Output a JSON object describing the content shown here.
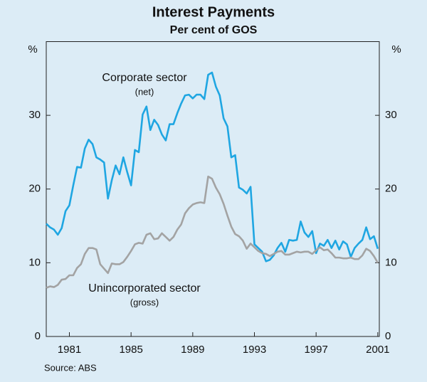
{
  "chart_data": {
    "type": "line",
    "title": "Interest Payments",
    "subtitle": "Per cent of GOS",
    "y_unit": "%",
    "y2_unit": "%",
    "source": "Source: ABS",
    "annotations": [
      "(net)",
      "(gross)"
    ],
    "x": [
      1979.5,
      1979.75,
      1980,
      1980.25,
      1980.5,
      1980.75,
      1981,
      1981.25,
      1981.5,
      1981.75,
      1982,
      1982.25,
      1982.5,
      1982.75,
      1983,
      1983.25,
      1983.5,
      1983.75,
      1984,
      1984.25,
      1984.5,
      1984.75,
      1985,
      1985.25,
      1985.5,
      1985.75,
      1986,
      1986.25,
      1986.5,
      1986.75,
      1987,
      1987.25,
      1987.5,
      1987.75,
      1988,
      1988.25,
      1988.5,
      1988.75,
      1989,
      1989.25,
      1989.5,
      1989.75,
      1990,
      1990.25,
      1990.5,
      1990.75,
      1991,
      1991.25,
      1991.5,
      1991.75,
      1992,
      1992.25,
      1992.5,
      1992.75,
      1993,
      1993.25,
      1993.5,
      1993.75,
      1994,
      1994.25,
      1994.5,
      1994.75,
      1995,
      1995.25,
      1995.5,
      1995.75,
      1996,
      1996.25,
      1996.5,
      1996.75,
      1997,
      1997.25,
      1997.5,
      1997.75,
      1998,
      1998.25,
      1998.5,
      1998.75,
      1999,
      1999.25,
      1999.5,
      1999.75,
      2000,
      2000.25,
      2000.5,
      2000.75,
      2001
    ],
    "series": [
      {
        "name": "Corporate sector",
        "color": "#1fa6e2",
        "values": [
          15.3,
          14.8,
          14.5,
          13.8,
          14.7,
          17.0,
          17.8,
          20.5,
          23.0,
          22.9,
          25.5,
          26.7,
          26.1,
          24.3,
          24.0,
          23.6,
          18.7,
          21.2,
          23.2,
          22.0,
          24.3,
          22.3,
          20.5,
          25.3,
          25.0,
          30.1,
          31.2,
          28.0,
          29.4,
          28.7,
          27.4,
          26.6,
          28.8,
          28.8,
          30.3,
          31.6,
          32.7,
          32.8,
          32.3,
          32.8,
          32.8,
          32.2,
          35.5,
          35.8,
          33.9,
          32.7,
          29.6,
          28.5,
          24.3,
          24.6,
          20.2,
          19.9,
          19.4,
          20.3,
          12.5,
          12.0,
          11.5,
          10.2,
          10.4,
          11.0,
          12.0,
          12.7,
          11.5,
          13.1,
          13.0,
          13.1,
          15.6,
          14.1,
          13.5,
          14.3,
          11.3,
          12.6,
          12.3,
          13.1,
          12.0,
          13.0,
          11.8,
          12.9,
          12.5,
          10.8,
          12.0,
          12.6,
          13.1,
          14.8,
          13.2,
          13.6,
          11.9
        ]
      },
      {
        "name": "Unincorporated sector",
        "color": "#a3a3a3",
        "values": [
          6.6,
          6.8,
          6.7,
          7.0,
          7.7,
          7.8,
          8.3,
          8.3,
          9.3,
          9.8,
          11.2,
          12.0,
          12.0,
          11.8,
          9.8,
          9.2,
          8.6,
          9.9,
          9.8,
          9.8,
          10.1,
          10.8,
          11.6,
          12.5,
          12.7,
          12.6,
          13.8,
          14.0,
          13.2,
          13.3,
          14.0,
          13.5,
          13.0,
          13.5,
          14.5,
          15.2,
          16.7,
          17.4,
          17.9,
          18.1,
          18.2,
          18.1,
          21.7,
          21.4,
          20.2,
          19.3,
          18.0,
          16.4,
          14.9,
          13.9,
          13.6,
          13.0,
          11.9,
          12.6,
          12.1,
          11.6,
          11.3,
          11.2,
          10.9,
          11.2,
          11.5,
          11.6,
          11.1,
          11.1,
          11.3,
          11.5,
          11.4,
          11.5,
          11.5,
          11.2,
          11.7,
          12.1,
          11.7,
          11.8,
          11.3,
          10.7,
          10.7,
          10.6,
          10.6,
          10.7,
          10.5,
          10.5,
          11.0,
          11.9,
          11.6,
          10.9,
          10.0
        ]
      }
    ],
    "xlim": [
      1979.5,
      2001.1
    ],
    "xticks": [
      1981,
      1985,
      1989,
      1993,
      1997,
      2001
    ],
    "ylim": [
      0,
      40
    ],
    "yticks": [
      0,
      10,
      20,
      30
    ],
    "y2lim": [
      0,
      40
    ],
    "y2ticks": [
      0,
      10,
      20,
      30
    ]
  }
}
